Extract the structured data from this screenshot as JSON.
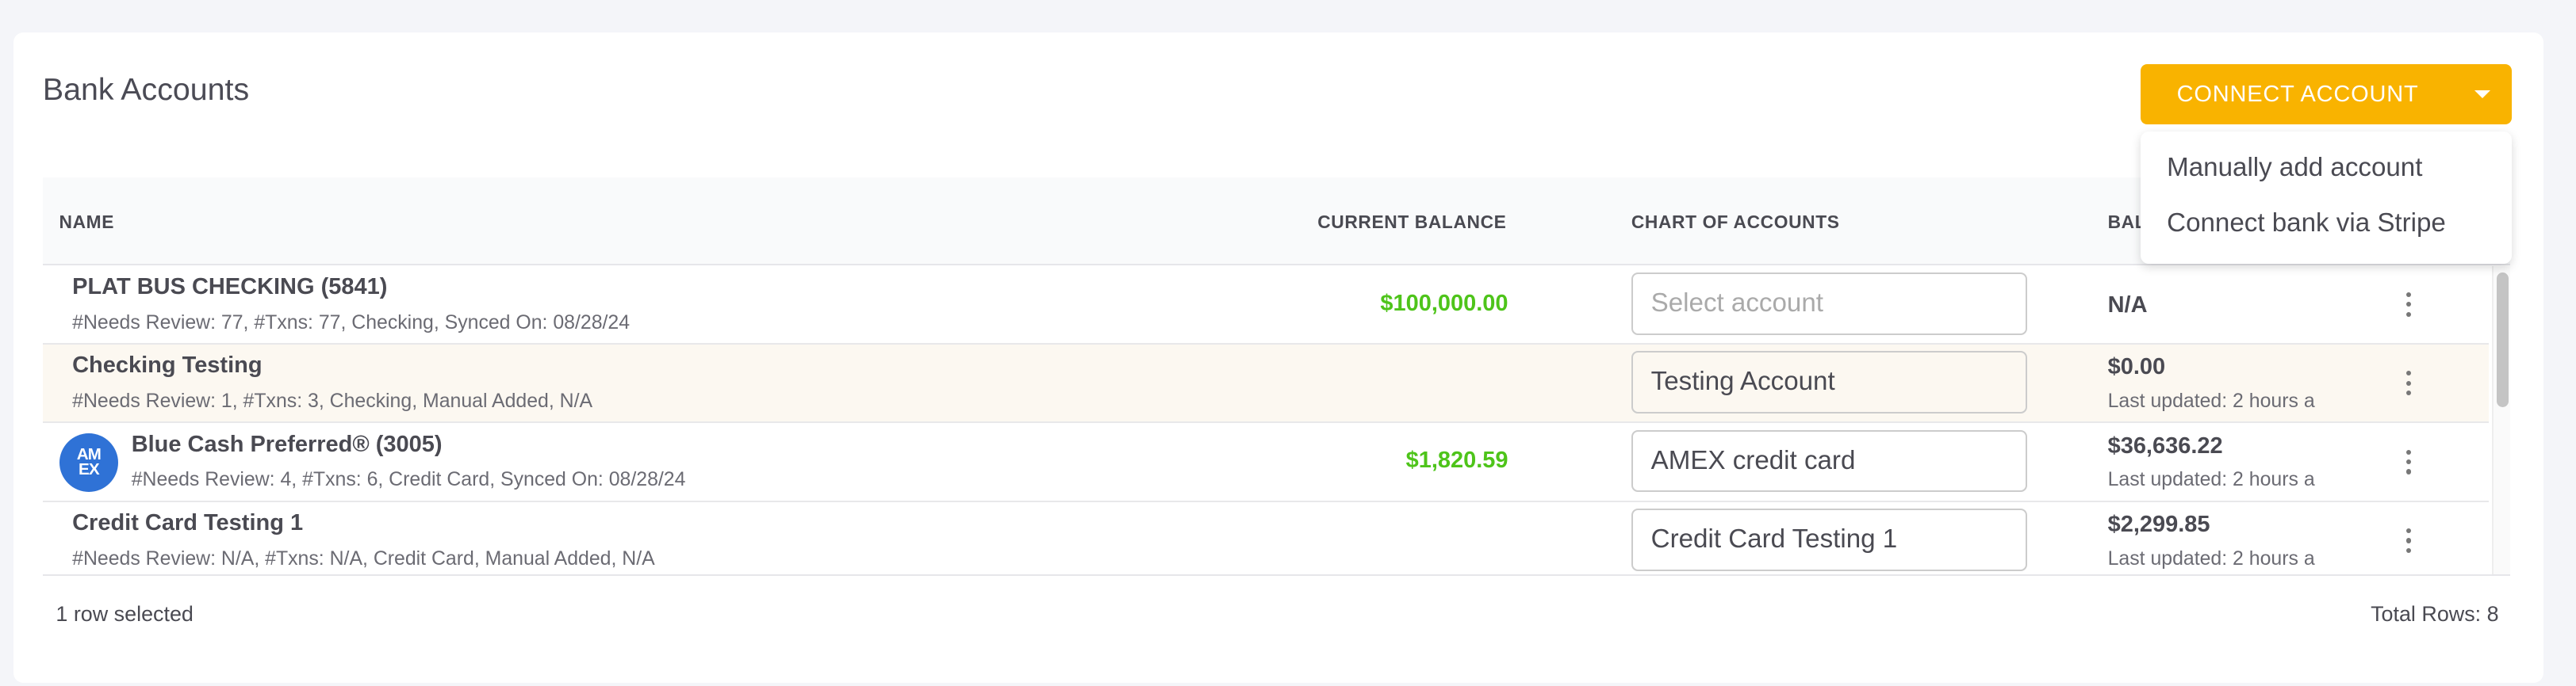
{
  "title": "Bank Accounts",
  "connect_button": {
    "label": "CONNECT ACCOUNT",
    "color": "#f9b300"
  },
  "menu": [
    "Manually add account",
    "Connect bank via Stripe"
  ],
  "columns": {
    "name": "NAME",
    "current_balance": "CURRENT BALANCE",
    "chart_of_accounts": "CHART OF ACCOUNTS",
    "balance": "BAL"
  },
  "rows": [
    {
      "name": "PLAT BUS CHECKING (5841)",
      "details": "#Needs Review: 77, #Txns: 77, Checking, Synced On: 08/28/24",
      "current_balance": "$100,000.00",
      "account": "",
      "account_placeholder": "Select account",
      "balance": "N/A",
      "last_updated": "",
      "selected": false,
      "logo": ""
    },
    {
      "name": "Checking Testing",
      "details": "#Needs Review: 1, #Txns: 3, Checking, Manual Added, N/A",
      "current_balance": "",
      "account": "Testing Account",
      "balance": "$0.00",
      "last_updated": "Last updated: 2 hours a",
      "selected": true,
      "logo": ""
    },
    {
      "name": "Blue Cash Preferred® (3005)",
      "details": "#Needs Review: 4, #Txns: 6, Credit Card, Synced On: 08/28/24",
      "current_balance": "$1,820.59",
      "account": "AMEX credit card",
      "balance": "$36,636.22",
      "last_updated": "Last updated: 2 hours a",
      "selected": false,
      "logo": "AMEX"
    },
    {
      "name": "Credit Card Testing 1",
      "details": "#Needs Review: N/A, #Txns: N/A, Credit Card, Manual Added, N/A",
      "current_balance": "",
      "account": "Credit Card Testing 1",
      "balance": "$2,299.85",
      "last_updated": "Last updated: 2 hours a",
      "selected": false,
      "logo": ""
    }
  ],
  "footer": {
    "selected": "1 row selected",
    "total": "Total Rows: 8"
  },
  "colors": {
    "positive_balance": "#4ec41a",
    "selected_row": "#fcf8f1"
  }
}
